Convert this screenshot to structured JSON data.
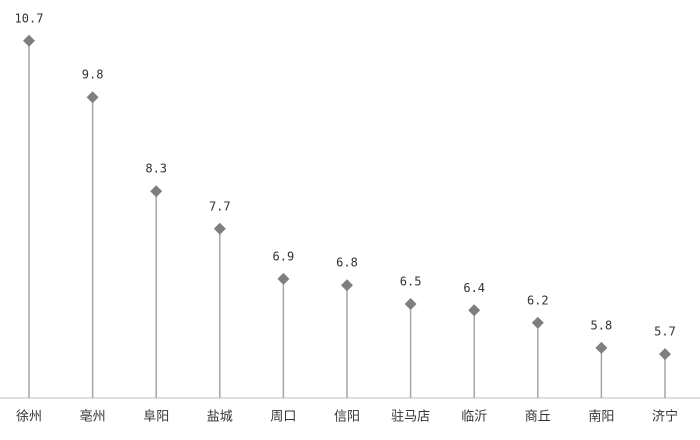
{
  "chart_data": {
    "type": "lollipop",
    "categories": [
      "徐州",
      "亳州",
      "阜阳",
      "盐城",
      "周口",
      "信阳",
      "驻马店",
      "临沂",
      "商丘",
      "南阳",
      "济宁"
    ],
    "values": [
      10.7,
      9.8,
      8.3,
      7.7,
      6.9,
      6.8,
      6.5,
      6.4,
      6.2,
      5.8,
      5.7
    ],
    "ylim": [
      5,
      11
    ],
    "color": "#7f7f7f",
    "stem_color": "#a6a6a6"
  }
}
